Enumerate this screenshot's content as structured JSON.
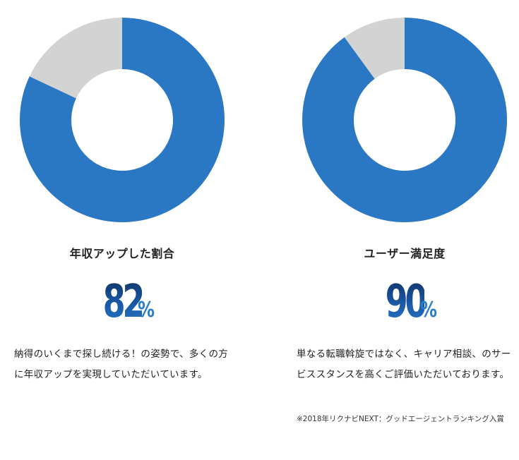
{
  "colors": {
    "filled": "#2a78c4",
    "remaining": "#d3d3d3",
    "accent": "#2a7dc9"
  },
  "chart_data": [
    {
      "type": "pie",
      "title": "年収アップした割合",
      "slices": [
        {
          "name": "",
          "value": 82
        },
        {
          "name": "",
          "value": 18
        }
      ],
      "value_label": "82",
      "unit": "%"
    },
    {
      "type": "pie",
      "title": "ユーザー満足度",
      "slices": [
        {
          "name": "",
          "value": 90
        },
        {
          "name": "",
          "value": 10
        }
      ],
      "value_label": "90",
      "unit": "%"
    }
  ],
  "descriptions": [
    {
      "text": "納得のいくまで探し続ける！の姿勢で、多くの方に年収アップを実現していただいています。"
    },
    {
      "text": "単なる転職斡旋ではなく、キャリア相談、のサービススタンスを高くご評価いただいております。",
      "note": "※2018年リクナビNEXT：グッドエージェントランキング入賞"
    }
  ]
}
